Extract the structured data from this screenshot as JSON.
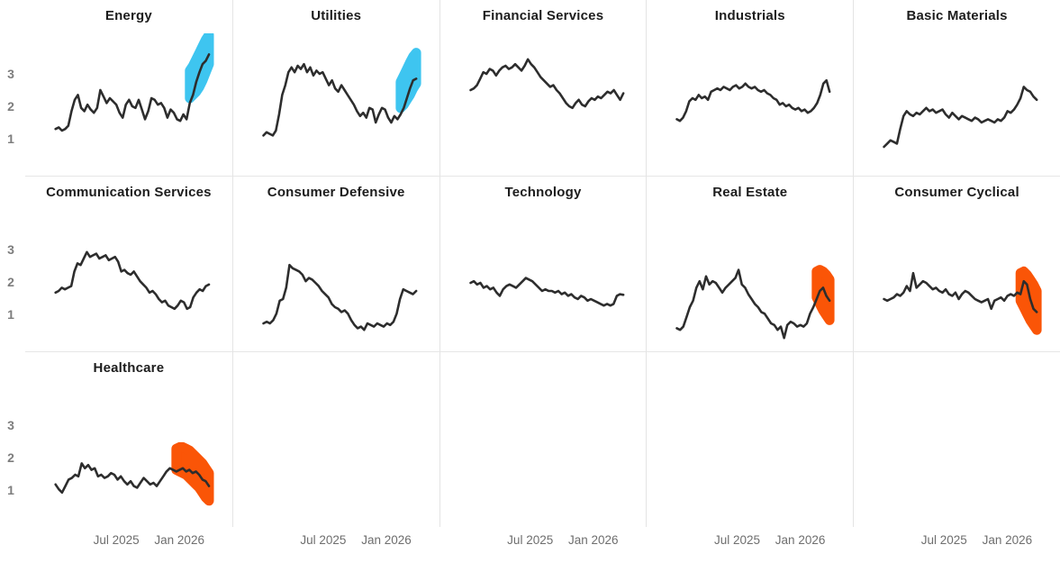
{
  "page": {
    "background": "#ffffff"
  },
  "colors": {
    "line": "#2d2d2d",
    "up_highlight": "#3ec5f0",
    "down_highlight": "#fa5507",
    "separator": "#e4e4e4",
    "y_tick_label": "#7d7d7d",
    "x_tick_label": "#6e6e6e",
    "title": "#1d1d1d"
  },
  "axes": {
    "y_ticks": [
      "3",
      "2",
      "1"
    ],
    "y_tick_values": [
      3,
      2,
      1
    ],
    "x_ticks": [
      "Jul 2025",
      "Jan 2026"
    ]
  },
  "chart_data": {
    "type": "line",
    "layout": {
      "rows": 3,
      "cols": 5,
      "legend": "none",
      "grid": "off"
    },
    "x_axis": {
      "tick_labels": [
        "Jul 2025",
        "Jan 2026"
      ],
      "tick_positions_pct": [
        44,
        74.5
      ]
    },
    "y_axis": {
      "tick_labels": [
        1,
        2,
        3
      ],
      "approx_range": [
        0.4,
        4.6
      ]
    },
    "panels": [
      {
        "title": "Energy",
        "values": [
          1.55,
          1.6,
          1.5,
          1.55,
          1.65,
          2.1,
          2.45,
          2.6,
          2.2,
          2.1,
          2.3,
          2.15,
          2.05,
          2.2,
          2.75,
          2.55,
          2.35,
          2.5,
          2.4,
          2.3,
          2.05,
          1.9,
          2.3,
          2.45,
          2.25,
          2.2,
          2.45,
          2.15,
          1.85,
          2.1,
          2.5,
          2.45,
          2.3,
          2.35,
          2.2,
          1.9,
          2.15,
          2.05,
          1.85,
          1.8,
          2.0,
          1.85,
          2.35,
          2.6,
          3.0,
          3.3,
          3.55,
          3.65,
          3.85
        ],
        "highlight": {
          "direction": "up",
          "from": 42,
          "lo": [
            2.5,
            2.6,
            2.7,
            2.85,
            3.05,
            3.3,
            3.55
          ],
          "hi": [
            3.35,
            3.5,
            3.7,
            3.9,
            4.1,
            4.3,
            4.45
          ]
        }
      },
      {
        "title": "Utilities",
        "values": [
          1.35,
          1.45,
          1.4,
          1.35,
          1.5,
          2.0,
          2.6,
          2.9,
          3.3,
          3.45,
          3.3,
          3.5,
          3.4,
          3.55,
          3.3,
          3.45,
          3.2,
          3.35,
          3.25,
          3.3,
          3.1,
          2.9,
          3.05,
          2.8,
          2.7,
          2.9,
          2.75,
          2.6,
          2.45,
          2.3,
          2.1,
          1.95,
          2.05,
          1.9,
          2.2,
          2.15,
          1.75,
          2.0,
          2.2,
          2.15,
          1.9,
          1.75,
          1.95,
          1.85,
          2.0,
          2.2,
          2.5,
          2.8,
          3.05,
          3.1
        ],
        "highlight": {
          "direction": "up",
          "from": 44,
          "lo": [
            2.2,
            2.3,
            2.45,
            2.6,
            2.8,
            2.95
          ],
          "hi": [
            3.0,
            3.2,
            3.4,
            3.6,
            3.78,
            3.9
          ]
        }
      },
      {
        "title": "Financial Services",
        "values": [
          2.75,
          2.8,
          2.9,
          3.1,
          3.3,
          3.25,
          3.4,
          3.35,
          3.2,
          3.35,
          3.45,
          3.5,
          3.4,
          3.45,
          3.55,
          3.45,
          3.35,
          3.5,
          3.7,
          3.55,
          3.45,
          3.3,
          3.15,
          3.05,
          2.95,
          2.85,
          2.9,
          2.75,
          2.65,
          2.5,
          2.35,
          2.25,
          2.2,
          2.35,
          2.45,
          2.3,
          2.25,
          2.4,
          2.5,
          2.45,
          2.55,
          2.5,
          2.6,
          2.7,
          2.65,
          2.75,
          2.6,
          2.45,
          2.65
        ]
      },
      {
        "title": "Industrials",
        "values": [
          1.85,
          1.8,
          1.9,
          2.1,
          2.4,
          2.5,
          2.45,
          2.6,
          2.5,
          2.55,
          2.45,
          2.7,
          2.75,
          2.8,
          2.75,
          2.85,
          2.8,
          2.75,
          2.85,
          2.9,
          2.8,
          2.85,
          2.95,
          2.85,
          2.8,
          2.85,
          2.75,
          2.7,
          2.75,
          2.65,
          2.6,
          2.5,
          2.45,
          2.3,
          2.35,
          2.25,
          2.3,
          2.2,
          2.15,
          2.2,
          2.1,
          2.15,
          2.05,
          2.1,
          2.2,
          2.35,
          2.6,
          2.95,
          3.05,
          2.7
        ]
      },
      {
        "title": "Basic Materials",
        "values": [
          1.0,
          1.1,
          1.2,
          1.15,
          1.1,
          1.55,
          1.95,
          2.1,
          2.0,
          1.95,
          2.05,
          2.0,
          2.1,
          2.2,
          2.1,
          2.15,
          2.05,
          2.1,
          2.15,
          2.0,
          1.9,
          2.05,
          1.95,
          1.85,
          1.95,
          1.9,
          1.85,
          1.8,
          1.9,
          1.85,
          1.75,
          1.8,
          1.85,
          1.8,
          1.75,
          1.85,
          1.8,
          1.9,
          2.1,
          2.05,
          2.15,
          2.3,
          2.5,
          2.85,
          2.75,
          2.7,
          2.55,
          2.45
        ]
      },
      {
        "title": "Communication Services",
        "values": [
          1.95,
          2.0,
          2.1,
          2.05,
          2.1,
          2.15,
          2.6,
          2.85,
          2.8,
          3.0,
          3.2,
          3.05,
          3.1,
          3.15,
          3.0,
          3.05,
          3.1,
          2.95,
          3.0,
          3.05,
          2.9,
          2.6,
          2.65,
          2.55,
          2.5,
          2.6,
          2.45,
          2.3,
          2.2,
          2.1,
          1.95,
          2.0,
          1.9,
          1.75,
          1.65,
          1.7,
          1.55,
          1.5,
          1.45,
          1.55,
          1.7,
          1.65,
          1.45,
          1.5,
          1.8,
          1.95,
          2.05,
          2.0,
          2.15,
          2.2
        ]
      },
      {
        "title": "Consumer Defensive",
        "values": [
          1.0,
          1.05,
          1.0,
          1.1,
          1.3,
          1.7,
          1.75,
          2.1,
          2.8,
          2.7,
          2.65,
          2.6,
          2.5,
          2.3,
          2.4,
          2.35,
          2.25,
          2.15,
          2.0,
          1.9,
          1.8,
          1.6,
          1.5,
          1.45,
          1.35,
          1.4,
          1.3,
          1.1,
          0.95,
          0.85,
          0.9,
          0.8,
          1.0,
          0.95,
          0.9,
          1.0,
          0.95,
          0.9,
          1.0,
          0.95,
          1.05,
          1.3,
          1.75,
          2.05,
          2.0,
          1.95,
          1.9,
          2.0
        ]
      },
      {
        "title": "Technology",
        "values": [
          2.25,
          2.3,
          2.2,
          2.25,
          2.1,
          2.15,
          2.05,
          2.1,
          1.95,
          1.85,
          2.05,
          2.15,
          2.2,
          2.15,
          2.1,
          2.2,
          2.3,
          2.4,
          2.35,
          2.3,
          2.2,
          2.1,
          2.0,
          2.05,
          2.0,
          2.0,
          1.95,
          2.0,
          1.9,
          1.95,
          1.85,
          1.9,
          1.8,
          1.75,
          1.85,
          1.8,
          1.7,
          1.75,
          1.7,
          1.65,
          1.6,
          1.55,
          1.6,
          1.55,
          1.6,
          1.85,
          1.9,
          1.88
        ]
      },
      {
        "title": "Real Estate",
        "values": [
          0.85,
          0.8,
          0.9,
          1.2,
          1.5,
          1.7,
          2.1,
          2.3,
          2.05,
          2.45,
          2.2,
          2.3,
          2.25,
          2.1,
          1.95,
          2.1,
          2.2,
          2.3,
          2.4,
          2.65,
          2.2,
          2.1,
          1.9,
          1.75,
          1.6,
          1.5,
          1.35,
          1.3,
          1.15,
          1.0,
          0.95,
          0.8,
          0.9,
          0.55,
          0.95,
          1.05,
          1.0,
          0.9,
          0.95,
          0.9,
          1.0,
          1.3,
          1.5,
          1.75,
          2.0,
          2.1,
          1.85,
          1.7
        ],
        "highlight": {
          "direction": "down",
          "from": 43,
          "lo": [
            1.8,
            1.6,
            1.4,
            1.25,
            1.1
          ],
          "hi": [
            2.6,
            2.65,
            2.6,
            2.5,
            2.35
          ]
        }
      },
      {
        "title": "Consumer Cyclical",
        "values": [
          1.75,
          1.7,
          1.75,
          1.8,
          1.9,
          1.85,
          1.95,
          2.15,
          2.0,
          2.55,
          2.1,
          2.2,
          2.3,
          2.25,
          2.15,
          2.05,
          2.1,
          2.0,
          1.95,
          2.05,
          1.9,
          1.85,
          1.95,
          1.75,
          1.9,
          2.0,
          1.95,
          1.85,
          1.75,
          1.7,
          1.65,
          1.7,
          1.75,
          1.45,
          1.7,
          1.75,
          1.8,
          1.7,
          1.85,
          1.9,
          1.85,
          1.95,
          1.9,
          2.3,
          2.2,
          1.75,
          1.45,
          1.35
        ],
        "highlight": {
          "direction": "down",
          "from": 42,
          "lo": [
            1.7,
            1.5,
            1.3,
            1.1,
            0.95,
            0.8
          ],
          "hi": [
            2.55,
            2.6,
            2.5,
            2.35,
            2.2,
            2.0
          ]
        }
      },
      {
        "title": "Healthcare",
        "values": [
          1.45,
          1.3,
          1.2,
          1.4,
          1.6,
          1.65,
          1.75,
          1.7,
          2.1,
          1.95,
          2.05,
          1.9,
          1.95,
          1.7,
          1.75,
          1.65,
          1.7,
          1.8,
          1.75,
          1.6,
          1.7,
          1.55,
          1.45,
          1.55,
          1.4,
          1.35,
          1.5,
          1.65,
          1.55,
          1.45,
          1.5,
          1.4,
          1.55,
          1.7,
          1.85,
          1.95,
          1.9,
          1.85,
          1.9,
          1.95,
          1.85,
          1.9,
          1.8,
          1.85,
          1.75,
          1.6,
          1.55,
          1.4
        ],
        "highlight": {
          "direction": "down",
          "from": 37,
          "lo": [
            1.9,
            1.85,
            1.8,
            1.75,
            1.65,
            1.55,
            1.45,
            1.35,
            1.2,
            1.05,
            0.95
          ],
          "hi": [
            2.55,
            2.6,
            2.6,
            2.55,
            2.5,
            2.4,
            2.3,
            2.2,
            2.1,
            1.95,
            1.8
          ]
        }
      }
    ]
  }
}
